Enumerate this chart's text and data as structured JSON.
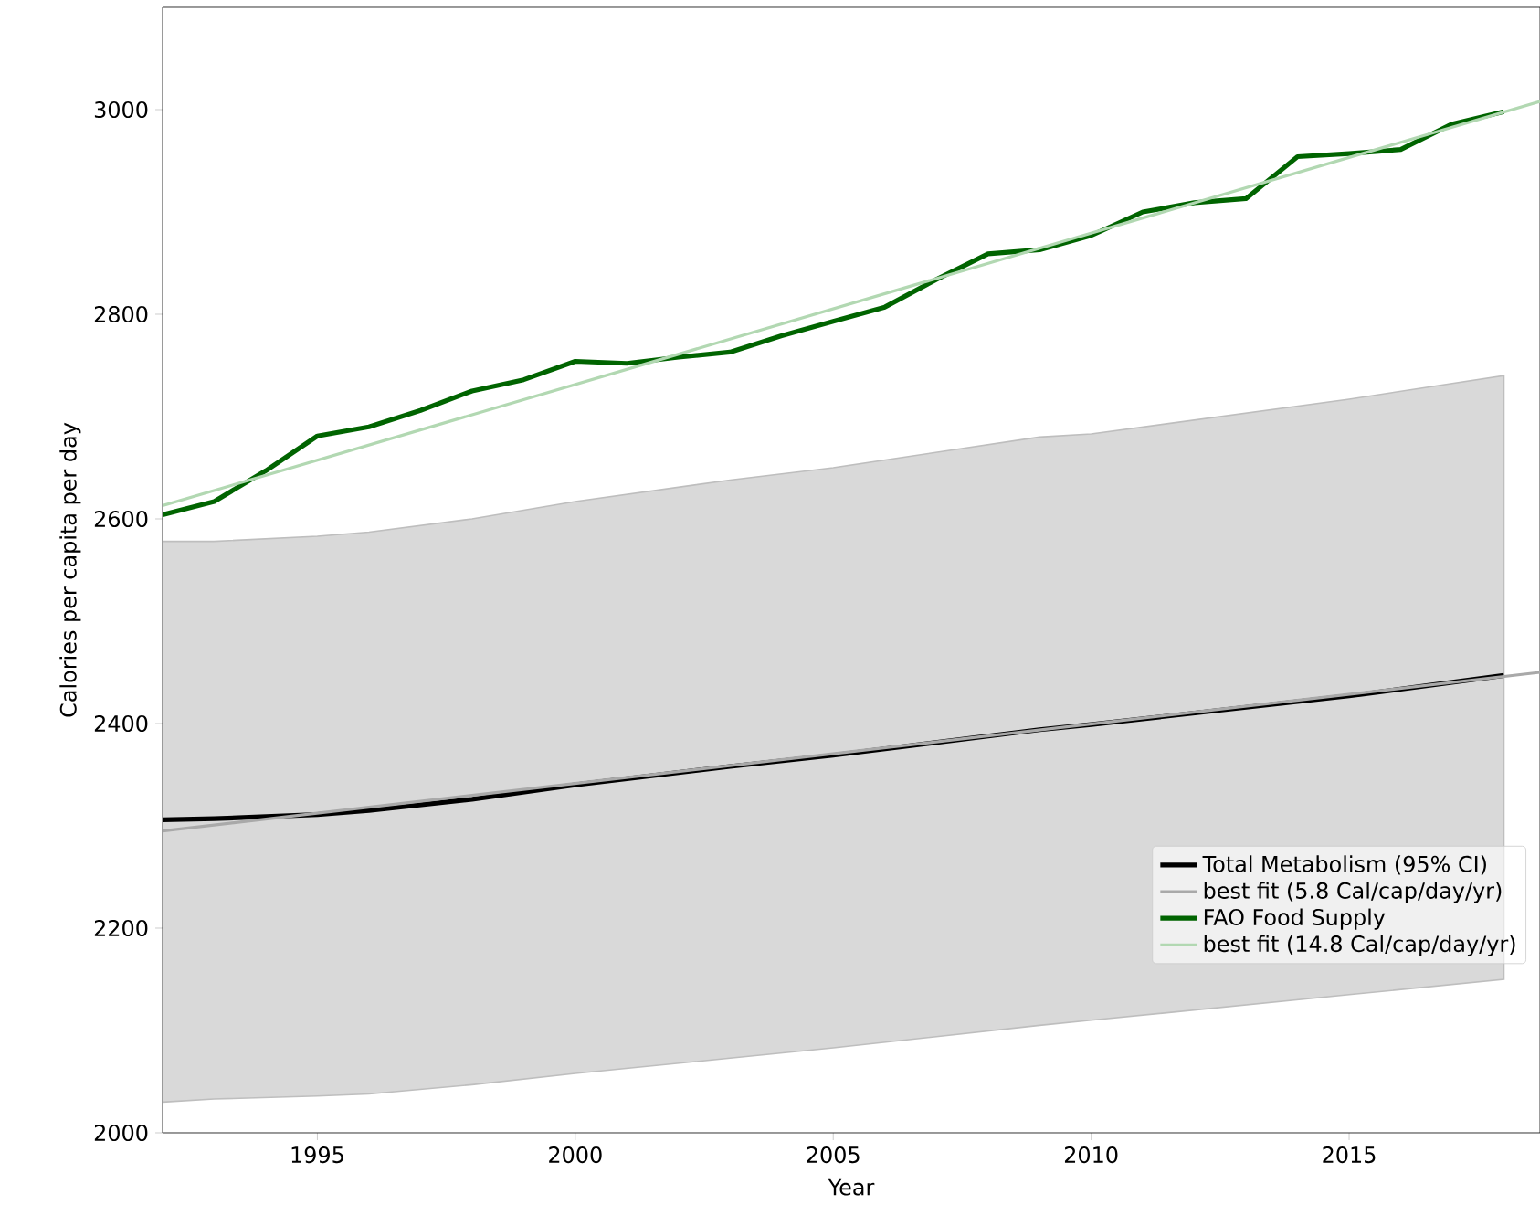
{
  "chart_data": {
    "type": "line",
    "xlabel": "Year",
    "ylabel": "Calories per capita per day",
    "xlim": [
      1992,
      2018.7
    ],
    "ylim": [
      2000,
      3100
    ],
    "xticks": [
      1995,
      2000,
      2005,
      2010,
      2015
    ],
    "yticks": [
      2000,
      2200,
      2400,
      2600,
      2800,
      3000
    ],
    "legend": "bottom right",
    "series": [
      {
        "name": "Total Metabolism (95% CI)",
        "color": "#000000",
        "x": [
          1992,
          1993,
          1995,
          1996,
          1998,
          2000,
          2003,
          2005,
          2009,
          2010,
          2015,
          2018
        ],
        "values": [
          2306,
          2307,
          2311,
          2315,
          2326,
          2340,
          2358,
          2369,
          2394,
          2399,
          2427,
          2447
        ],
        "lower": [
          2030,
          2033,
          2036,
          2038,
          2047,
          2058,
          2073,
          2083,
          2105,
          2110,
          2135,
          2150
        ],
        "upper": [
          2578,
          2578,
          2583,
          2587,
          2600,
          2617,
          2638,
          2650,
          2680,
          2683,
          2717,
          2740
        ]
      },
      {
        "name": "best fit (5.8 Cal/cap/day/yr)",
        "color": "#a9a9a9",
        "x": [
          1992,
          2018.7
        ],
        "values": [
          2295,
          2450
        ]
      },
      {
        "name": "FAO Food Supply",
        "color": "#006400",
        "x": [
          1992,
          1993,
          1994,
          1995,
          1996,
          1997,
          1998,
          1999,
          2000,
          2001,
          2002,
          2003,
          2004,
          2005,
          2006,
          2007,
          2008,
          2009,
          2010,
          2011,
          2012,
          2013,
          2014,
          2015,
          2016,
          2017,
          2018
        ],
        "values": [
          2604,
          2617,
          2647,
          2681,
          2690,
          2706,
          2725,
          2736,
          2754,
          2752,
          2758,
          2763,
          2779,
          2793,
          2807,
          2834,
          2859,
          2863,
          2877,
          2900,
          2909,
          2913,
          2954,
          2957,
          2961,
          2986,
          2998
        ]
      },
      {
        "name": "best fit (14.8 Cal/cap/day/yr)",
        "color": "#b2d8b2",
        "x": [
          1992,
          2018.7
        ],
        "values": [
          2613,
          3008
        ]
      }
    ]
  }
}
